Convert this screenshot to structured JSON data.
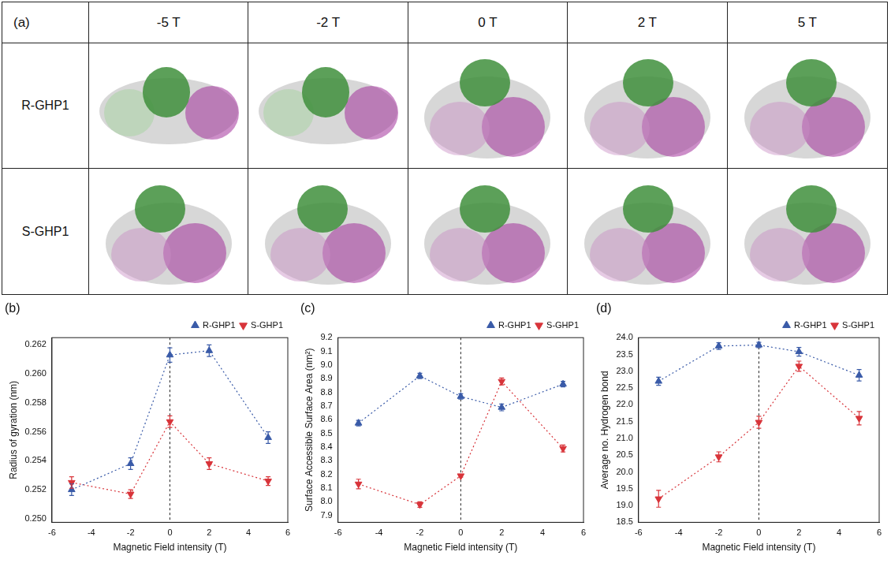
{
  "table": {
    "label": "(a)",
    "columns": [
      "-5 T",
      "-2 T",
      "0 T",
      "2 T",
      "5 T"
    ],
    "rows": [
      "R-GHP1",
      "S-GHP1"
    ]
  },
  "chart_data": [
    {
      "type": "line",
      "panel": "(b)",
      "x_label": "Magnetic Field intensity (T)",
      "y_label": "Radius of gyration (nm)",
      "x": [
        -5,
        -2,
        0,
        2,
        5
      ],
      "series": [
        {
          "name": "R-GHP1",
          "color": "#3a5ba8",
          "marker": "triangle",
          "line_style": "dotted",
          "values": [
            0.252,
            0.2538,
            0.2613,
            0.2616,
            0.2556
          ],
          "errors": [
            0.0004,
            0.0004,
            0.0005,
            0.0004,
            0.0004
          ]
        },
        {
          "name": "S-GHP1",
          "color": "#d8343a",
          "marker": "triangle-down",
          "line_style": "dotted",
          "values": [
            0.2525,
            0.2517,
            0.2567,
            0.2538,
            0.2526
          ],
          "errors": [
            0.0004,
            0.0003,
            0.0004,
            0.0004,
            0.0003
          ]
        }
      ],
      "reference_x": 0,
      "xlim": [
        -6,
        6
      ],
      "xticks": [
        -6,
        -4,
        -2,
        0,
        2,
        4,
        6
      ],
      "ylim": [
        0.24975,
        0.2625
      ],
      "yticks": [
        {
          "value": 0.25,
          "label": "0.250"
        },
        {
          "value": 0.252,
          "label": "0.252"
        },
        {
          "value": 0.254,
          "label": "0.254"
        },
        {
          "value": 0.256,
          "label": "0.256"
        },
        {
          "value": 0.258,
          "label": "0.258"
        },
        {
          "value": 0.26,
          "label": "0.260"
        },
        {
          "value": 0.262,
          "label": "0.262"
        }
      ],
      "grid": false,
      "legend": "upper right"
    },
    {
      "type": "line",
      "panel": "(c)",
      "x_label": "Magnetic Field intensity (T)",
      "y_label": "Surface Accessible Surface Area (nm²)",
      "x": [
        -5,
        -2,
        0,
        2,
        5
      ],
      "series": [
        {
          "name": "R-GHP1",
          "color": "#3a5ba8",
          "marker": "triangle",
          "line_style": "dotted",
          "values": [
            8.575,
            8.92,
            8.77,
            8.69,
            8.86
          ],
          "errors": [
            0.02,
            0.02,
            0.02,
            0.025,
            0.02
          ]
        },
        {
          "name": "S-GHP1",
          "color": "#d8343a",
          "marker": "triangle-down",
          "line_style": "dotted",
          "values": [
            8.13,
            7.98,
            8.19,
            8.88,
            8.39
          ],
          "errors": [
            0.035,
            0.02,
            0.01,
            0.025,
            0.025
          ]
        }
      ],
      "reference_x": 0,
      "xlim": [
        -6,
        6
      ],
      "xticks": [
        -6,
        -4,
        -2,
        0,
        2,
        4,
        6
      ],
      "ylim": [
        7.85,
        9.2
      ],
      "yticks": [
        7.9,
        {
          "value": 8.0,
          "label": "8.0"
        },
        8.1,
        8.2,
        8.3,
        8.4,
        8.5,
        8.6,
        8.7,
        8.8,
        8.9,
        {
          "value": 9.0,
          "label": "9.0"
        },
        9.1,
        9.2
      ],
      "grid": false,
      "legend": "upper right"
    },
    {
      "type": "line",
      "panel": "(d)",
      "x_label": "Magnetic Field intensity (T)",
      "y_label": "Average no. Hydrogen bond",
      "x": [
        -5,
        -2,
        0,
        2,
        5
      ],
      "series": [
        {
          "name": "R-GHP1",
          "color": "#3a5ba8",
          "marker": "triangle",
          "line_style": "dotted",
          "values": [
            22.7,
            23.75,
            23.78,
            23.58,
            22.88
          ],
          "errors": [
            0.12,
            0.1,
            0.08,
            0.13,
            0.17
          ]
        },
        {
          "name": "S-GHP1",
          "color": "#d8343a",
          "marker": "triangle-down",
          "line_style": "dotted",
          "values": [
            19.2,
            20.45,
            21.48,
            23.15,
            21.6
          ],
          "errors": [
            0.25,
            0.15,
            0.18,
            0.15,
            0.2
          ]
        }
      ],
      "reference_x": 0,
      "xlim": [
        -6,
        6
      ],
      "xticks": [
        -6,
        -4,
        -2,
        0,
        2,
        4,
        6
      ],
      "ylim": [
        18.5,
        24.0
      ],
      "yticks": [
        18.5,
        {
          "value": 19.0,
          "label": "19.0"
        },
        19.5,
        {
          "value": 20.0,
          "label": "20.0"
        },
        20.5,
        {
          "value": 21.0,
          "label": "21.0"
        },
        21.5,
        {
          "value": 22.0,
          "label": "22.0"
        },
        22.5,
        {
          "value": 23.0,
          "label": "23.0"
        },
        23.5,
        {
          "value": 24.0,
          "label": "24.0"
        }
      ],
      "grid": false,
      "legend": "upper right"
    }
  ]
}
